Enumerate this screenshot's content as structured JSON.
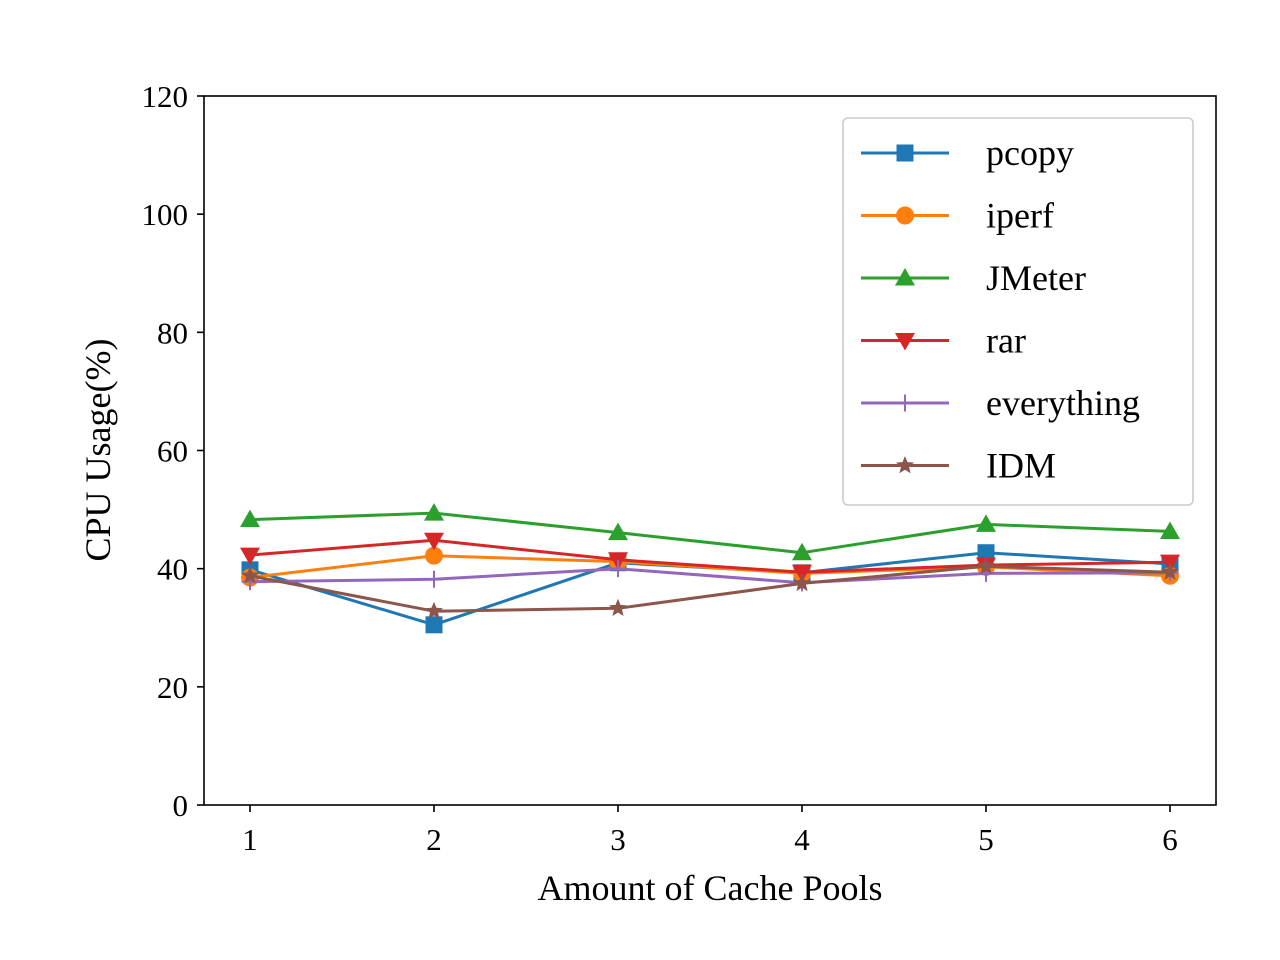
{
  "chart_data": {
    "type": "line",
    "title": "",
    "xlabel": "Amount of Cache Pools",
    "ylabel": "CPU Usage(%)",
    "x": [
      1,
      2,
      3,
      4,
      5,
      6
    ],
    "xticks": [
      "1",
      "2",
      "3",
      "4",
      "5",
      "6"
    ],
    "yticks": [
      "0",
      "20",
      "40",
      "60",
      "80",
      "100",
      "120"
    ],
    "xlim": [
      0.75,
      6.25
    ],
    "ylim": [
      0,
      120
    ],
    "grid": false,
    "legend_position": "top-right",
    "series": [
      {
        "name": "pcopy",
        "color": "#1f77b4",
        "marker": "square",
        "values": [
          39.8,
          30.5,
          41.0,
          39.3,
          42.7,
          40.8
        ]
      },
      {
        "name": "iperf",
        "color": "#ff7f0e",
        "marker": "circle",
        "values": [
          38.5,
          42.2,
          41.2,
          39.2,
          40.3,
          38.8
        ]
      },
      {
        "name": "JMeter",
        "color": "#2ca02c",
        "marker": "triangle-up",
        "values": [
          48.3,
          49.4,
          46.1,
          42.7,
          47.5,
          46.3
        ]
      },
      {
        "name": "rar",
        "color": "#d62728",
        "marker": "triangle-down",
        "values": [
          42.3,
          44.8,
          41.5,
          39.4,
          40.6,
          41.1
        ]
      },
      {
        "name": "everything",
        "color": "#9467bd",
        "marker": "plus",
        "values": [
          37.8,
          38.2,
          40.0,
          37.6,
          39.2,
          39.3
        ]
      },
      {
        "name": "IDM",
        "color": "#8c564b",
        "marker": "star",
        "values": [
          38.8,
          32.8,
          33.3,
          37.5,
          40.4,
          39.4
        ]
      }
    ]
  }
}
